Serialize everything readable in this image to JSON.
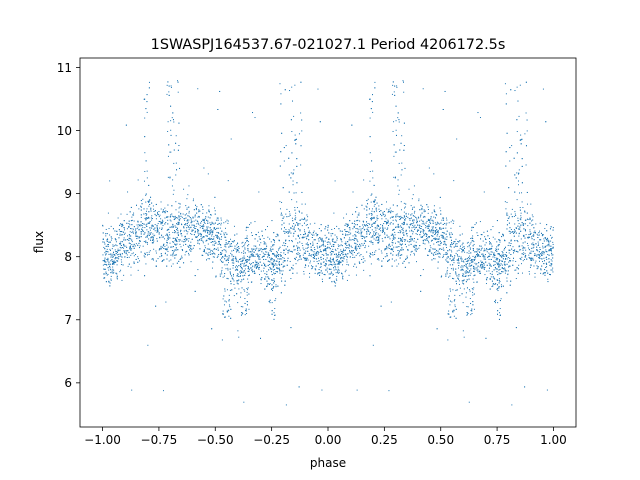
{
  "chart_data": {
    "type": "scatter",
    "title": "1SWASPJ164537.67-021027.1 Period 4206172.5s",
    "xlabel": "phase",
    "ylabel": "flux",
    "xlim": [
      -1.1,
      1.1
    ],
    "ylim": [
      5.3,
      11.15
    ],
    "x_ticks": [
      -1.0,
      -0.75,
      -0.5,
      -0.25,
      0.0,
      0.25,
      0.5,
      0.75,
      1.0
    ],
    "x_tick_labels": [
      "−1.00",
      "−0.75",
      "−0.50",
      "−0.25",
      "0.00",
      "0.25",
      "0.50",
      "0.75",
      "1.00"
    ],
    "y_ticks": [
      6,
      7,
      8,
      9,
      10,
      11
    ],
    "y_tick_labels": [
      "6",
      "7",
      "8",
      "9",
      "10",
      "11"
    ],
    "grid": false,
    "legend": "none",
    "marker_color": "#1f77b4",
    "series": [
      {
        "x_range": [
          -1.0,
          1.0
        ],
        "phase_folded": true,
        "profile": {
          "phase": [
            0.0,
            0.05,
            0.1,
            0.15,
            0.2,
            0.25,
            0.3,
            0.35,
            0.4,
            0.45,
            0.5,
            0.55,
            0.6,
            0.65,
            0.7,
            0.75,
            0.8,
            0.85,
            0.9,
            0.95,
            1.0
          ],
          "center": [
            8.1,
            8.0,
            8.2,
            8.3,
            8.5,
            8.4,
            8.3,
            8.4,
            8.5,
            8.4,
            8.3,
            8.1,
            7.9,
            8.0,
            8.0,
            7.9,
            8.1,
            8.3,
            8.2,
            8.1,
            8.1
          ],
          "spread": [
            0.45,
            0.4,
            0.45,
            0.5,
            0.6,
            0.55,
            0.45,
            0.45,
            0.5,
            0.45,
            0.45,
            0.45,
            0.5,
            0.45,
            0.4,
            0.5,
            0.55,
            0.55,
            0.5,
            0.4,
            0.45
          ]
        },
        "flare_phases": [
          0.3,
          0.33,
          0.2,
          0.8,
          0.84,
          0.87
        ],
        "dip_phases": [
          0.55,
          0.75,
          0.63
        ],
        "outlier_range": [
          5.55,
          10.85
        ]
      }
    ]
  }
}
